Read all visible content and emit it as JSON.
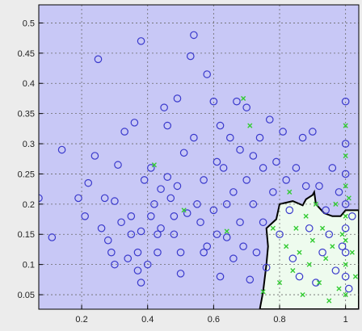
{
  "chart_data": {
    "type": "scatter",
    "title": "",
    "xlabel": "",
    "ylabel": "",
    "xlim": [
      0.07,
      1.04
    ],
    "ylim": [
      0.026,
      0.53
    ],
    "grid": true,
    "x_ticks": [
      0.2,
      0.4,
      0.6,
      0.8,
      1
    ],
    "y_ticks": [
      0.05,
      0.1,
      0.15,
      0.2,
      0.25,
      0.3,
      0.35,
      0.4,
      0.45,
      0.5
    ],
    "x_tick_labels": [
      "0.2",
      "0.4",
      "0.6",
      "0.8",
      "1"
    ],
    "y_tick_labels": [
      "0.05",
      "0.1",
      "0.15",
      "0.2",
      "0.25",
      "0.3",
      "0.35",
      "0.4",
      "0.45",
      "0.5"
    ],
    "colors": {
      "background_region": "#c8c8f6",
      "boundary_region": "#eefbee",
      "boundary_line": "#000000",
      "grid": "#6a6a6a",
      "circle": "#3a3acc",
      "cross": "#33cc33",
      "axes_box": "#000000"
    },
    "decision_boundary": [
      [
        0.74,
        0.026
      ],
      [
        0.75,
        0.055
      ],
      [
        0.76,
        0.1
      ],
      [
        0.765,
        0.13
      ],
      [
        0.76,
        0.16
      ],
      [
        0.79,
        0.175
      ],
      [
        0.8,
        0.2
      ],
      [
        0.84,
        0.205
      ],
      [
        0.87,
        0.198
      ],
      [
        0.88,
        0.208
      ],
      [
        0.9,
        0.215
      ],
      [
        0.905,
        0.22
      ],
      [
        0.91,
        0.2
      ],
      [
        0.935,
        0.185
      ],
      [
        0.96,
        0.18
      ],
      [
        0.985,
        0.18
      ],
      [
        1.0,
        0.19
      ],
      [
        1.04,
        0.19
      ],
      [
        1.04,
        0.026
      ]
    ],
    "series": [
      {
        "marker": "circle",
        "color": "#3a3acc",
        "points": [
          [
            0.07,
            0.21
          ],
          [
            0.11,
            0.145
          ],
          [
            0.14,
            0.29
          ],
          [
            0.19,
            0.21
          ],
          [
            0.21,
            0.18
          ],
          [
            0.22,
            0.235
          ],
          [
            0.24,
            0.28
          ],
          [
            0.25,
            0.44
          ],
          [
            0.26,
            0.16
          ],
          [
            0.27,
            0.21
          ],
          [
            0.28,
            0.14
          ],
          [
            0.29,
            0.12
          ],
          [
            0.3,
            0.1
          ],
          [
            0.3,
            0.205
          ],
          [
            0.31,
            0.265
          ],
          [
            0.32,
            0.17
          ],
          [
            0.33,
            0.32
          ],
          [
            0.34,
            0.11
          ],
          [
            0.35,
            0.15
          ],
          [
            0.35,
            0.18
          ],
          [
            0.36,
            0.335
          ],
          [
            0.37,
            0.09
          ],
          [
            0.37,
            0.12
          ],
          [
            0.38,
            0.07
          ],
          [
            0.38,
            0.155
          ],
          [
            0.39,
            0.24
          ],
          [
            0.38,
            0.47
          ],
          [
            0.4,
            0.1
          ],
          [
            0.41,
            0.18
          ],
          [
            0.41,
            0.26
          ],
          [
            0.42,
            0.2
          ],
          [
            0.43,
            0.12
          ],
          [
            0.43,
            0.15
          ],
          [
            0.44,
            0.16
          ],
          [
            0.44,
            0.225
          ],
          [
            0.45,
            0.36
          ],
          [
            0.46,
            0.33
          ],
          [
            0.46,
            0.245
          ],
          [
            0.47,
            0.21
          ],
          [
            0.48,
            0.15
          ],
          [
            0.48,
            0.18
          ],
          [
            0.49,
            0.375
          ],
          [
            0.49,
            0.23
          ],
          [
            0.5,
            0.085
          ],
          [
            0.5,
            0.12
          ],
          [
            0.51,
            0.285
          ],
          [
            0.52,
            0.185
          ],
          [
            0.53,
            0.445
          ],
          [
            0.54,
            0.48
          ],
          [
            0.54,
            0.31
          ],
          [
            0.55,
            0.2
          ],
          [
            0.56,
            0.17
          ],
          [
            0.57,
            0.24
          ],
          [
            0.57,
            0.12
          ],
          [
            0.58,
            0.415
          ],
          [
            0.58,
            0.13
          ],
          [
            0.6,
            0.37
          ],
          [
            0.6,
            0.19
          ],
          [
            0.61,
            0.27
          ],
          [
            0.61,
            0.15
          ],
          [
            0.62,
            0.33
          ],
          [
            0.62,
            0.08
          ],
          [
            0.63,
            0.26
          ],
          [
            0.64,
            0.2
          ],
          [
            0.64,
            0.145
          ],
          [
            0.65,
            0.31
          ],
          [
            0.66,
            0.22
          ],
          [
            0.66,
            0.11
          ],
          [
            0.67,
            0.37
          ],
          [
            0.68,
            0.17
          ],
          [
            0.68,
            0.29
          ],
          [
            0.69,
            0.13
          ],
          [
            0.7,
            0.36
          ],
          [
            0.7,
            0.24
          ],
          [
            0.71,
            0.075
          ],
          [
            0.72,
            0.28
          ],
          [
            0.72,
            0.2
          ],
          [
            0.73,
            0.12
          ],
          [
            0.74,
            0.31
          ],
          [
            0.75,
            0.17
          ],
          [
            0.75,
            0.26
          ],
          [
            0.76,
            0.095
          ],
          [
            0.77,
            0.34
          ],
          [
            0.78,
            0.22
          ],
          [
            0.79,
            0.27
          ],
          [
            0.8,
            0.15
          ],
          [
            0.81,
            0.32
          ],
          [
            0.82,
            0.24
          ],
          [
            0.83,
            0.19
          ],
          [
            0.84,
            0.11
          ],
          [
            0.85,
            0.26
          ],
          [
            0.86,
            0.08
          ],
          [
            0.87,
            0.31
          ],
          [
            0.88,
            0.23
          ],
          [
            0.89,
            0.16
          ],
          [
            0.9,
            0.32
          ],
          [
            0.91,
            0.07
          ],
          [
            0.92,
            0.23
          ],
          [
            0.93,
            0.12
          ],
          [
            0.94,
            0.19
          ],
          [
            0.95,
            0.15
          ],
          [
            0.96,
            0.26
          ],
          [
            0.97,
            0.09
          ],
          [
            0.98,
            0.22
          ],
          [
            0.99,
            0.13
          ],
          [
            1.0,
            0.37
          ],
          [
            1.0,
            0.3
          ],
          [
            1.0,
            0.25
          ],
          [
            1.0,
            0.2
          ],
          [
            1.0,
            0.16
          ],
          [
            1.0,
            0.12
          ],
          [
            1.0,
            0.08
          ],
          [
            1.01,
            0.06
          ],
          [
            1.02,
            0.18
          ]
        ]
      },
      {
        "marker": "cross",
        "color": "#33cc33",
        "points": [
          [
            0.42,
            0.265
          ],
          [
            0.51,
            0.19
          ],
          [
            0.64,
            0.155
          ],
          [
            0.69,
            0.375
          ],
          [
            0.71,
            0.33
          ],
          [
            0.75,
            0.055
          ],
          [
            0.78,
            0.16
          ],
          [
            0.8,
            0.07
          ],
          [
            0.82,
            0.13
          ],
          [
            0.83,
            0.22
          ],
          [
            0.84,
            0.09
          ],
          [
            0.85,
            0.16
          ],
          [
            0.86,
            0.12
          ],
          [
            0.87,
            0.05
          ],
          [
            0.88,
            0.18
          ],
          [
            0.89,
            0.1
          ],
          [
            0.9,
            0.14
          ],
          [
            0.91,
            0.2
          ],
          [
            0.92,
            0.07
          ],
          [
            0.93,
            0.16
          ],
          [
            0.94,
            0.11
          ],
          [
            0.95,
            0.04
          ],
          [
            0.96,
            0.13
          ],
          [
            0.97,
            0.2
          ],
          [
            0.98,
            0.06
          ],
          [
            0.99,
            0.15
          ],
          [
            1.0,
            0.33
          ],
          [
            1.0,
            0.28
          ],
          [
            1.0,
            0.23
          ],
          [
            1.0,
            0.18
          ],
          [
            1.0,
            0.14
          ],
          [
            1.0,
            0.1
          ],
          [
            1.0,
            0.05
          ],
          [
            1.01,
            0.21
          ],
          [
            1.02,
            0.12
          ],
          [
            1.03,
            0.08
          ]
        ]
      }
    ]
  }
}
